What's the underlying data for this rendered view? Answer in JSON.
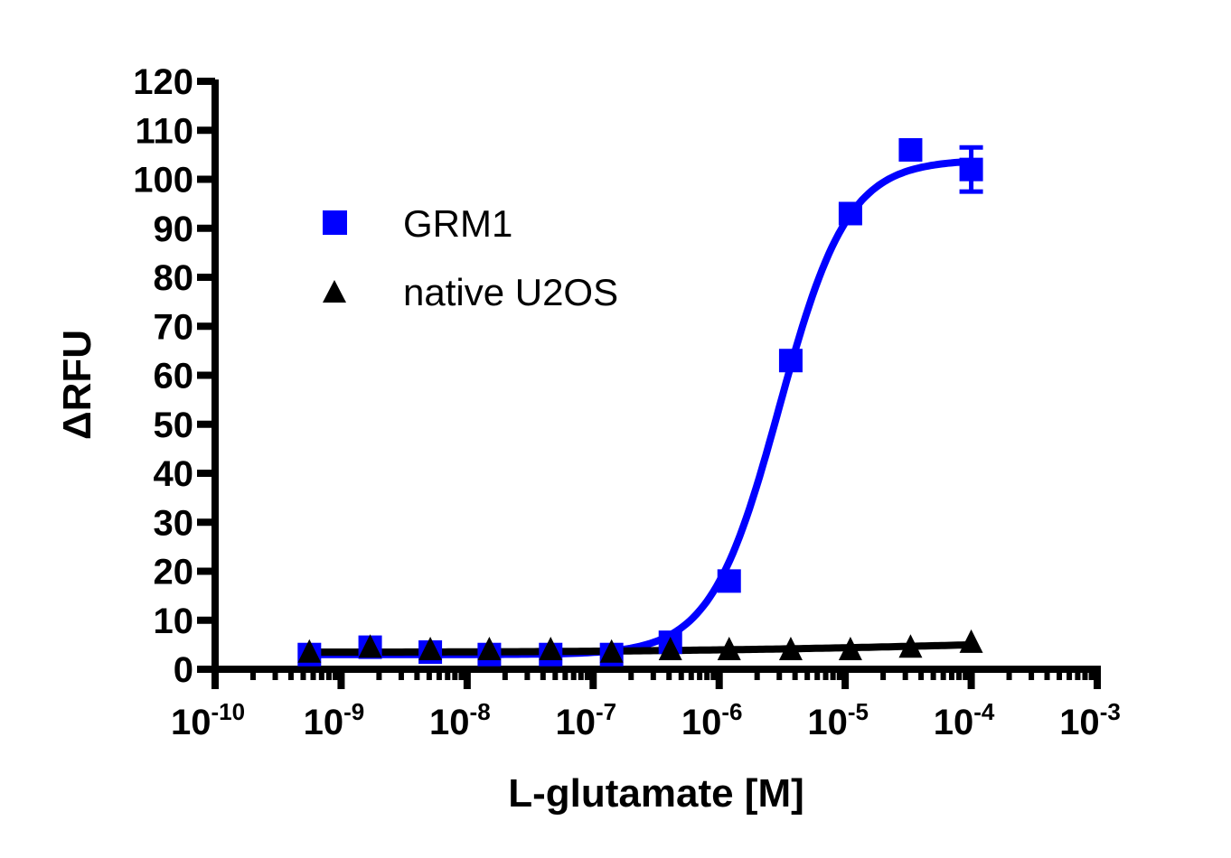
{
  "chart_data": {
    "type": "scatter",
    "title": "",
    "xlabel": "L-glutamate [M]",
    "ylabel": "ΔRFU",
    "xscale": "log",
    "xlim": [
      1e-10,
      0.001
    ],
    "ylim": [
      0,
      120
    ],
    "x_ticks": [
      "10-10",
      "10-9",
      "10-8",
      "10-7",
      "10-6",
      "10-5",
      "10-4",
      "10-3"
    ],
    "x_tick_labels": [
      {
        "base": "10",
        "exp": "-10"
      },
      {
        "base": "10",
        "exp": "-9"
      },
      {
        "base": "10",
        "exp": "-8"
      },
      {
        "base": "10",
        "exp": "-7"
      },
      {
        "base": "10",
        "exp": "-6"
      },
      {
        "base": "10",
        "exp": "-5"
      },
      {
        "base": "10",
        "exp": "-4"
      },
      {
        "base": "10",
        "exp": "-3"
      }
    ],
    "y_ticks": [
      0,
      10,
      20,
      30,
      40,
      50,
      60,
      70,
      80,
      90,
      100,
      110,
      120
    ],
    "grid": false,
    "legend_position": "upper-left",
    "x": [
      5.6e-10,
      1.7e-09,
      5.1e-09,
      1.5e-08,
      4.6e-08,
      1.4e-07,
      4.1e-07,
      1.2e-06,
      3.7e-06,
      1.1e-05,
      3.3e-05,
      0.0001
    ],
    "series": [
      {
        "name": "GRM1",
        "color": "#0000ff",
        "marker": "square",
        "values": [
          3,
          4.5,
          3.5,
          3,
          3,
          3,
          5.5,
          18,
          63,
          93,
          106,
          102
        ],
        "error": [
          0,
          0,
          0,
          0,
          0,
          0,
          0,
          0,
          0,
          0,
          0,
          4.5
        ],
        "fit": {
          "type": "sigmoidal dose-response",
          "bottom": 3,
          "top": 104,
          "ec50": 3e-06,
          "hill": 1.6
        }
      },
      {
        "name": "native U2OS",
        "color": "#000000",
        "marker": "triangle",
        "values": [
          3,
          4,
          3.5,
          3.5,
          3.5,
          3,
          3.5,
          3.5,
          3.5,
          3.5,
          4,
          5
        ],
        "error": [
          0,
          0,
          0,
          0,
          0,
          0,
          0,
          0,
          0,
          0,
          0,
          0
        ],
        "fit": {
          "type": "near-flat line",
          "start": 3.5,
          "end": 5
        }
      }
    ]
  },
  "legend": {
    "items": [
      {
        "label": "GRM1",
        "color": "#0000ff",
        "marker": "square"
      },
      {
        "label": "native U2OS",
        "color": "#000000",
        "marker": "triangle"
      }
    ]
  },
  "axes": {
    "y_title": "ΔRFU",
    "x_title": "L-glutamate [M]"
  }
}
